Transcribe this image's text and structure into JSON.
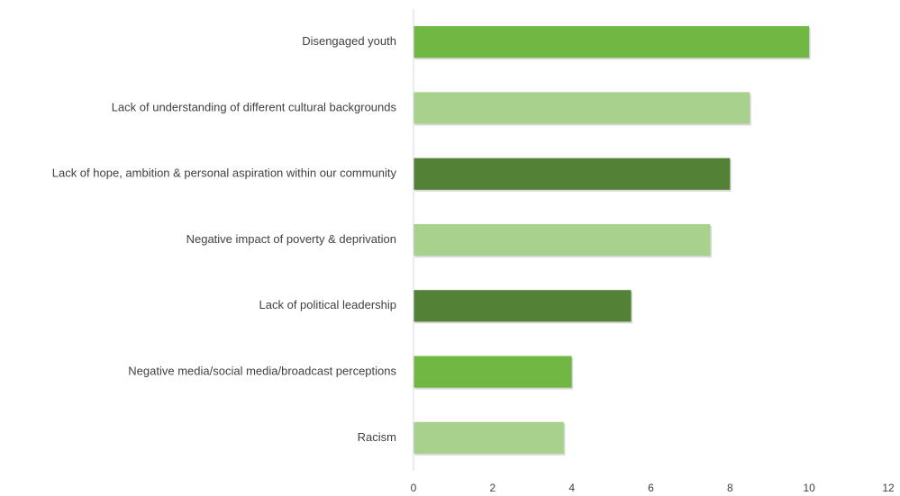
{
  "chart_data": {
    "type": "bar",
    "orientation": "horizontal",
    "categories": [
      "Disengaged youth",
      "Lack of understanding of different cultural backgrounds",
      "Lack of hope, ambition & personal aspiration within our community",
      "Negative impact of poverty & deprivation",
      "Lack of political leadership",
      "Negative media/social media/broadcast perceptions",
      "Racism"
    ],
    "values": [
      10,
      8.5,
      8,
      7.5,
      5.5,
      4,
      3.8
    ],
    "bar_colors": [
      "#70b843",
      "#a8d18d",
      "#538135",
      "#a8d18d",
      "#538135",
      "#70b843",
      "#a8d18d"
    ],
    "xlim": [
      0,
      12
    ],
    "x_ticks": [
      "0",
      "2",
      "4",
      "6",
      "8",
      "10",
      "12"
    ],
    "grid": false,
    "legend": "none"
  }
}
